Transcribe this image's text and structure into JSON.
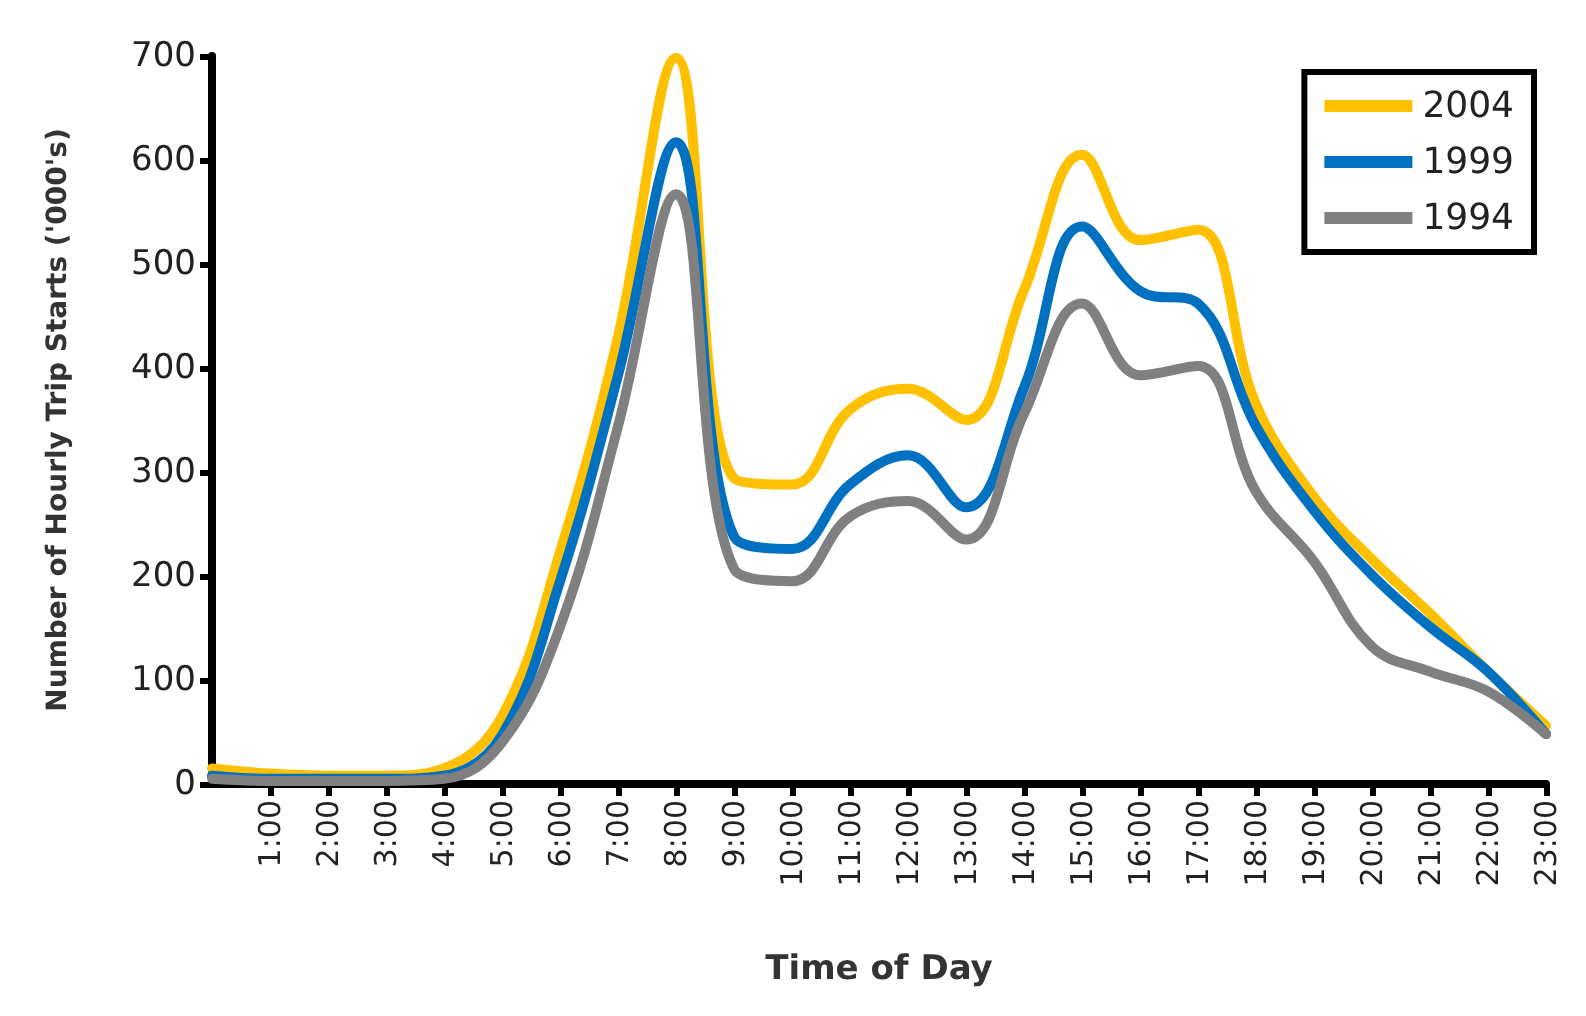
{
  "chart_data": {
    "type": "line",
    "xlabel": "Time of Day",
    "ylabel": "Number of Hourly Trip Starts ('000's)",
    "x": [
      0,
      1,
      2,
      3,
      4,
      5,
      6,
      7,
      8,
      9,
      10,
      11,
      12,
      13,
      14,
      15,
      16,
      17,
      18,
      19,
      20,
      21,
      22,
      23
    ],
    "series": [
      {
        "name": "2004",
        "color": "#ffc000",
        "values": [
          15,
          10,
          8,
          8,
          15,
          65,
          223,
          430,
          698,
          294,
          288,
          360,
          380,
          350,
          475,
          605,
          523,
          533,
          365,
          276,
          216,
          164,
          108,
          56
        ]
      },
      {
        "name": "1999",
        "color": "#0070c0",
        "values": [
          8,
          5,
          5,
          5,
          8,
          47,
          195,
          393,
          617,
          238,
          226,
          288,
          316,
          266,
          381,
          536,
          474,
          462,
          344,
          263,
          201,
          151,
          108,
          48
        ]
      },
      {
        "name": "1994",
        "color": "#808080",
        "values": [
          5,
          3,
          3,
          3,
          5,
          40,
          151,
          344,
          567,
          207,
          195,
          257,
          272,
          235,
          356,
          462,
          393,
          402,
          281,
          214,
          132,
          108,
          89,
          48
        ]
      }
    ],
    "xlim": [
      0,
      23
    ],
    "xticks": [
      {
        "value": 1,
        "label": "1:00"
      },
      {
        "value": 2,
        "label": "2:00"
      },
      {
        "value": 3,
        "label": "3:00"
      },
      {
        "value": 4,
        "label": "4:00"
      },
      {
        "value": 5,
        "label": "5:00"
      },
      {
        "value": 6,
        "label": "6:00"
      },
      {
        "value": 7,
        "label": "7:00"
      },
      {
        "value": 8,
        "label": "8:00"
      },
      {
        "value": 9,
        "label": "9:00"
      },
      {
        "value": 10,
        "label": "10:00"
      },
      {
        "value": 11,
        "label": "11:00"
      },
      {
        "value": 12,
        "label": "12:00"
      },
      {
        "value": 13,
        "label": "13:00"
      },
      {
        "value": 14,
        "label": "14:00"
      },
      {
        "value": 15,
        "label": "15:00"
      },
      {
        "value": 16,
        "label": "16:00"
      },
      {
        "value": 17,
        "label": "17:00"
      },
      {
        "value": 18,
        "label": "18:00"
      },
      {
        "value": 19,
        "label": "19:00"
      },
      {
        "value": 20,
        "label": "20:00"
      },
      {
        "value": 21,
        "label": "21:00"
      },
      {
        "value": 22,
        "label": "22:00"
      },
      {
        "value": 23,
        "label": "23:00"
      }
    ],
    "ylim": [
      0,
      700
    ],
    "yticks": [
      0,
      100,
      200,
      300,
      400,
      500,
      600,
      700
    ],
    "grid": false,
    "legend": "top right",
    "marker": "none",
    "line_style": "solid"
  }
}
